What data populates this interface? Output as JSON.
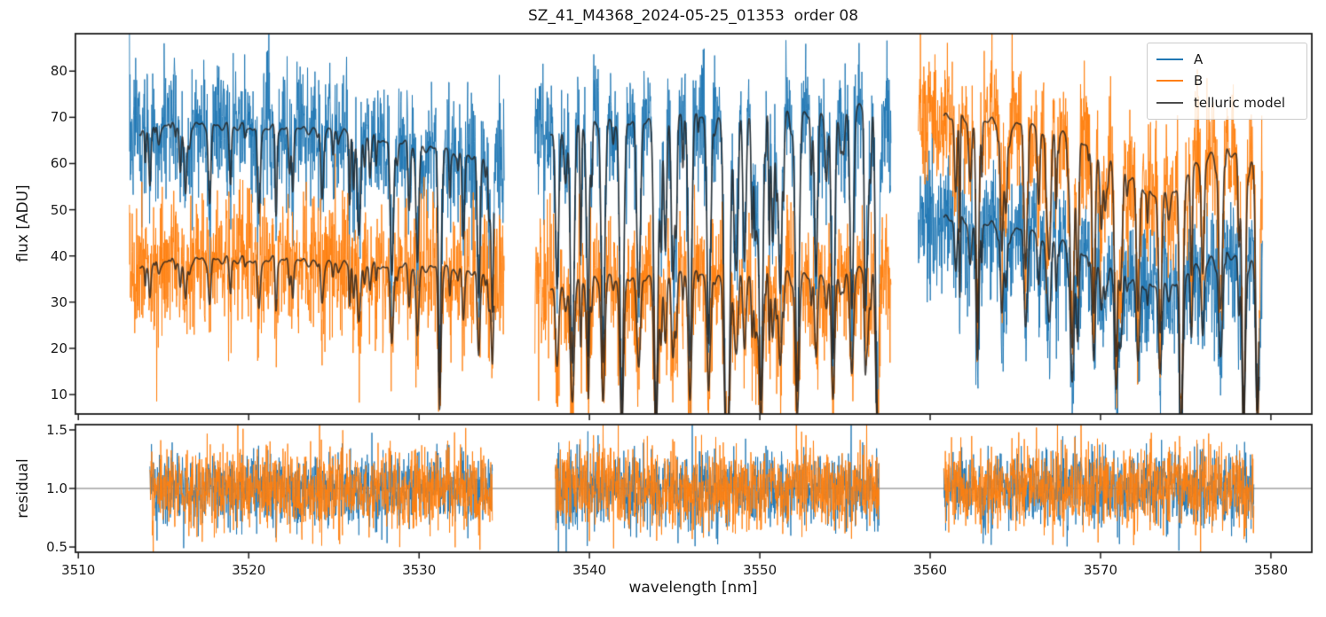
{
  "title": "SZ_41_M4368_2024-05-25_01353  order 08",
  "legend": {
    "entries": [
      {
        "label": "A",
        "color": "#1f77b4"
      },
      {
        "label": "B",
        "color": "#ff7f0e"
      },
      {
        "label": "telluric model",
        "color": "#4d4d4d"
      }
    ]
  },
  "chart_data": {
    "type": "line",
    "title": "SZ_41_M4368_2024-05-25_01353  order 08",
    "xlabel": "wavelength [nm]",
    "xlim": [
      3509.83,
      3582.4
    ],
    "xticks": [
      3510,
      3520,
      3530,
      3540,
      3550,
      3560,
      3570,
      3580
    ],
    "grid": false,
    "legend_position": "upper right",
    "panels": [
      {
        "name": "flux",
        "ylabel": "flux [ADU]",
        "ylim": [
          5.8,
          88.1
        ],
        "yticks": [
          10,
          20,
          30,
          40,
          50,
          60,
          70,
          80
        ]
      },
      {
        "name": "residual",
        "ylabel": "residual",
        "ylim": [
          0.455,
          1.545
        ],
        "yticks": [
          "0.5",
          "1.0",
          "1.5"
        ],
        "yticks_num": [
          0.5,
          1.0,
          1.5
        ],
        "refline": 1.0
      }
    ],
    "colors": {
      "A": "#1f77b4",
      "B": "#ff7f0e",
      "model": "rgba(35,32,30,0.8)",
      "refline": "#6e6e6e",
      "spine": "#1c1c1c"
    },
    "noise": {
      "flux_sigma_A": 6.8,
      "flux_sigma_B": 7.2,
      "residual_sigma_A": 0.16,
      "residual_sigma_B": 0.18,
      "points_per_nm": 55
    },
    "segments": [
      {
        "flux_range": [
          3513.0,
          3535.0
        ],
        "model_range": [
          3513.6,
          3534.4
        ],
        "residual_range": [
          3514.2,
          3534.3
        ],
        "continuum_A": [
          [
            3513.6,
            67.0
          ],
          [
            3515.5,
            68.5
          ],
          [
            3518,
            68.2
          ],
          [
            3520,
            67.8
          ],
          [
            3522,
            67.5
          ],
          [
            3524,
            67.2
          ],
          [
            3526,
            66.5
          ],
          [
            3528,
            65.0
          ],
          [
            3529.5,
            64.0
          ],
          [
            3531,
            63.0
          ],
          [
            3532.5,
            62.0
          ],
          [
            3534.4,
            61.0
          ]
        ],
        "continuum_B": [
          [
            3513.6,
            37.5
          ],
          [
            3515.5,
            39.0
          ],
          [
            3518,
            39.2
          ],
          [
            3520,
            39.0
          ],
          [
            3522,
            39.2
          ],
          [
            3524,
            38.5
          ],
          [
            3526,
            38.0
          ],
          [
            3528,
            37.8
          ],
          [
            3530,
            37.5
          ],
          [
            3532,
            37.2
          ],
          [
            3534.4,
            36.0
          ]
        ],
        "major_dips": [
          [
            3514.2,
            0.18,
            0.06
          ],
          [
            3516.3,
            0.22,
            0.07
          ],
          [
            3518.9,
            0.12,
            0.06
          ],
          [
            3520.6,
            0.28,
            0.08
          ],
          [
            3522.4,
            0.15,
            0.06
          ],
          [
            3524.3,
            0.2,
            0.07
          ],
          [
            3526.5,
            0.28,
            0.08
          ],
          [
            3528.4,
            0.45,
            0.09
          ],
          [
            3529.9,
            0.35,
            0.08
          ],
          [
            3531.2,
            0.8,
            0.07
          ],
          [
            3532.6,
            0.3,
            0.07
          ],
          [
            3533.5,
            0.5,
            0.08
          ],
          [
            3534.3,
            0.55,
            0.07
          ]
        ],
        "minor_dips": {
          "count": 45,
          "depth": [
            0.02,
            0.25
          ],
          "width": [
            0.03,
            0.08
          ],
          "seed": 101
        }
      },
      {
        "flux_range": [
          3536.8,
          3557.7
        ],
        "model_range": [
          3537.7,
          3556.9
        ],
        "residual_range": [
          3538.0,
          3557.0
        ],
        "continuum_A": [
          [
            3537.7,
            66.0
          ],
          [
            3539,
            67.5
          ],
          [
            3541,
            68.5
          ],
          [
            3543,
            69.5
          ],
          [
            3545,
            70.0
          ],
          [
            3547,
            70.0
          ],
          [
            3549,
            70.5
          ],
          [
            3551,
            71.0
          ],
          [
            3553,
            71.0
          ],
          [
            3555,
            71.5
          ],
          [
            3556.9,
            72.5
          ]
        ],
        "continuum_B": [
          [
            3537.7,
            32.5
          ],
          [
            3539,
            34.0
          ],
          [
            3541,
            35.0
          ],
          [
            3543,
            35.5
          ],
          [
            3545,
            36.0
          ],
          [
            3547,
            36.0
          ],
          [
            3549,
            36.0
          ],
          [
            3551,
            36.5
          ],
          [
            3553,
            36.0
          ],
          [
            3555,
            36.5
          ],
          [
            3556.9,
            37.0
          ]
        ],
        "major_dips": [
          [
            3538.1,
            0.5,
            0.09
          ],
          [
            3539.0,
            0.68,
            0.1
          ],
          [
            3539.9,
            0.45,
            0.09
          ],
          [
            3540.8,
            0.75,
            0.1
          ],
          [
            3541.9,
            0.88,
            0.11
          ],
          [
            3542.9,
            0.55,
            0.1
          ],
          [
            3543.9,
            0.92,
            0.11
          ],
          [
            3544.9,
            0.5,
            0.09
          ],
          [
            3545.9,
            0.75,
            0.1
          ],
          [
            3547.0,
            0.6,
            0.1
          ],
          [
            3548.0,
            0.9,
            0.11
          ],
          [
            3549.1,
            0.45,
            0.09
          ],
          [
            3550.1,
            0.7,
            0.1
          ],
          [
            3551.2,
            0.55,
            0.1
          ],
          [
            3552.2,
            0.85,
            0.11
          ],
          [
            3553.3,
            0.5,
            0.09
          ],
          [
            3554.3,
            0.75,
            0.1
          ],
          [
            3555.4,
            0.6,
            0.1
          ],
          [
            3556.3,
            0.45,
            0.09
          ],
          [
            3556.9,
            0.7,
            0.1
          ]
        ],
        "minor_dips": {
          "count": 50,
          "depth": [
            0.05,
            0.45
          ],
          "width": [
            0.03,
            0.09
          ],
          "seed": 202
        }
      },
      {
        "flux_range": [
          3559.3,
          3579.5
        ],
        "model_range": [
          3560.8,
          3579.3
        ],
        "residual_range": [
          3560.8,
          3579.0
        ],
        "continuum_A": [
          [
            3560.8,
            48.0
          ],
          [
            3562,
            47.5
          ],
          [
            3564,
            46.5
          ],
          [
            3566,
            45.0
          ],
          [
            3567.5,
            43.0
          ],
          [
            3569,
            40.5
          ],
          [
            3570.5,
            37.5
          ],
          [
            3572,
            34.5
          ],
          [
            3573.2,
            33.0
          ],
          [
            3574.2,
            34.0
          ],
          [
            3575.2,
            36.5
          ],
          [
            3576.2,
            38.5
          ],
          [
            3577.2,
            40.0
          ],
          [
            3578.2,
            40.0
          ],
          [
            3579.3,
            38.0
          ]
        ],
        "continuum_B": [
          [
            3560.8,
            70.0
          ],
          [
            3562,
            69.5
          ],
          [
            3564,
            69.0
          ],
          [
            3566,
            68.0
          ],
          [
            3567.5,
            66.5
          ],
          [
            3569,
            64.5
          ],
          [
            3570.5,
            61.0
          ],
          [
            3572,
            56.5
          ],
          [
            3573.2,
            52.5
          ],
          [
            3574.2,
            54.0
          ],
          [
            3575.2,
            58.0
          ],
          [
            3576.2,
            61.0
          ],
          [
            3577.2,
            62.5
          ],
          [
            3578.2,
            62.0
          ],
          [
            3579.3,
            59.0
          ]
        ],
        "major_dips": [
          [
            3561.5,
            0.22,
            0.07
          ],
          [
            3562.8,
            0.35,
            0.08
          ],
          [
            3564.2,
            0.28,
            0.08
          ],
          [
            3565.6,
            0.45,
            0.09
          ],
          [
            3567.0,
            0.4,
            0.09
          ],
          [
            3568.3,
            0.55,
            0.09
          ],
          [
            3569.6,
            0.45,
            0.09
          ],
          [
            3570.9,
            0.6,
            0.09
          ],
          [
            3572.2,
            0.5,
            0.09
          ],
          [
            3573.5,
            0.55,
            0.09
          ],
          [
            3574.8,
            0.45,
            0.09
          ],
          [
            3576.0,
            0.4,
            0.08
          ],
          [
            3577.1,
            0.35,
            0.08
          ],
          [
            3578.4,
            0.92,
            0.1
          ],
          [
            3579.2,
            0.75,
            0.09
          ]
        ],
        "minor_dips": {
          "count": 48,
          "depth": [
            0.04,
            0.4
          ],
          "width": [
            0.03,
            0.09
          ],
          "seed": 303
        }
      }
    ]
  }
}
